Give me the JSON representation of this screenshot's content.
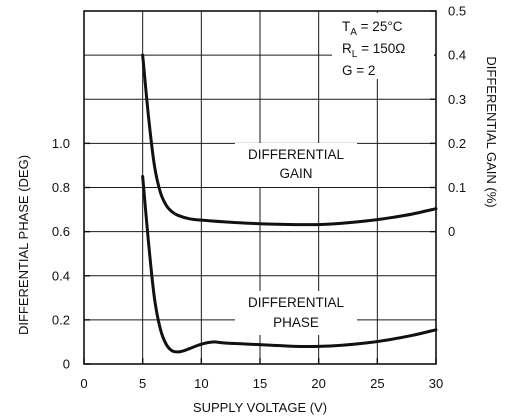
{
  "chart_data": {
    "type": "line",
    "xlabel": "SUPPLY VOLTAGE (V)",
    "ylabel_left": "DIFFERENTIAL PHASE (DEG)",
    "ylabel_right": "DIFFERENTIAL GAIN (%)",
    "xlim": [
      0,
      30
    ],
    "ylim_left": [
      0,
      1.6
    ],
    "ylim_right": [
      -0.3,
      0.5
    ],
    "x_ticks": [
      "0",
      "5",
      "10",
      "15",
      "20",
      "25",
      "30"
    ],
    "y_left_ticks": [
      "0",
      "0.2",
      "0.4",
      "0.6",
      "0.8",
      "1.0"
    ],
    "y_right_ticks": [
      "0",
      "0.1",
      "0.2",
      "0.3",
      "0.4",
      "0.5"
    ],
    "grid": true,
    "conditions": [
      "T_A = 25°C",
      "R_L = 150Ω",
      "G = 2"
    ],
    "series": [
      {
        "name": "DIFFERENTIAL GAIN",
        "label_lines": [
          "DIFFERENTIAL",
          "GAIN"
        ],
        "axis": "right",
        "x": [
          5,
          5.5,
          6,
          6.5,
          7,
          7.5,
          8,
          9,
          10,
          12,
          14,
          16,
          18,
          20,
          22,
          24,
          26,
          28,
          30
        ],
        "y": [
          0.4,
          0.26,
          0.15,
          0.09,
          0.06,
          0.045,
          0.037,
          0.029,
          0.026,
          0.022,
          0.019,
          0.017,
          0.016,
          0.016,
          0.019,
          0.024,
          0.031,
          0.04,
          0.052
        ]
      },
      {
        "name": "DIFFERENTIAL PHASE",
        "label_lines": [
          "DIFFERENTIAL",
          "PHASE"
        ],
        "axis": "left",
        "x": [
          5,
          5.5,
          6,
          6.5,
          7,
          7.5,
          8,
          8.5,
          9,
          10,
          11,
          12,
          14,
          16,
          18,
          20,
          22,
          24,
          26,
          28,
          30
        ],
        "y": [
          0.85,
          0.55,
          0.3,
          0.16,
          0.09,
          0.06,
          0.055,
          0.06,
          0.07,
          0.09,
          0.1,
          0.095,
          0.09,
          0.085,
          0.08,
          0.08,
          0.085,
          0.095,
          0.11,
          0.13,
          0.155
        ]
      }
    ]
  }
}
